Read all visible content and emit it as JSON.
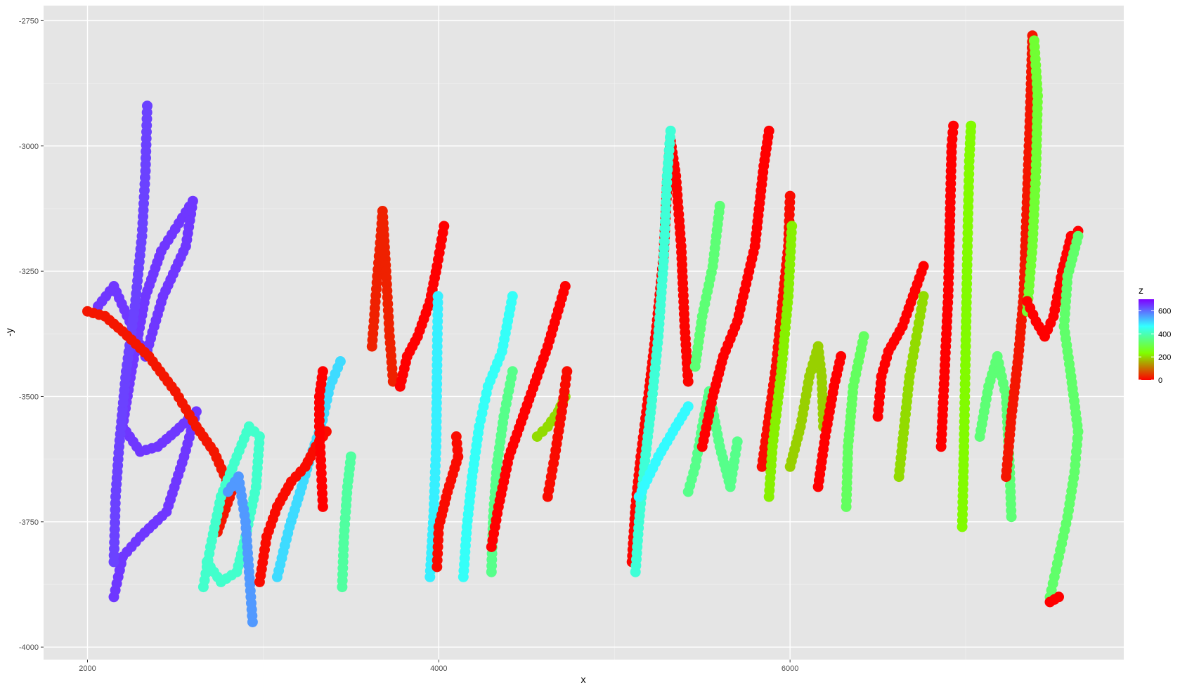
{
  "chart_data": {
    "type": "scatter",
    "title": "",
    "xlabel": "x",
    "ylabel": "-y",
    "xlim": [
      1750,
      7900
    ],
    "ylim": [
      -4025,
      -2720
    ],
    "x_ticks": [
      2000,
      4000,
      6000
    ],
    "x_tick_labels": [
      "2000",
      "4000",
      "6000"
    ],
    "y_ticks": [
      -4000,
      -3750,
      -3500,
      -3250,
      -3000,
      -2750
    ],
    "y_tick_labels": [
      "-4000",
      "-3750",
      "-3500",
      "-3250",
      "-3000",
      "-2750"
    ],
    "grid": true,
    "panel_background": "#e5e5e5",
    "grid_color": "#ffffff",
    "color_scale": {
      "name": "z",
      "min": 0,
      "max": 700,
      "breaks": [
        0,
        200,
        400,
        600
      ],
      "break_labels": [
        "0",
        "200",
        "400",
        "600"
      ],
      "stops": [
        "#ff0000",
        "#80ff00",
        "#33ffff",
        "#7f00ff"
      ]
    },
    "legend_position": "right",
    "tracks": [
      {
        "z": 650,
        "points": [
          [
            2150,
            -3900
          ],
          [
            2200,
            -3820
          ],
          [
            2300,
            -3780
          ],
          [
            2450,
            -3730
          ],
          [
            2550,
            -3620
          ],
          [
            2620,
            -3530
          ],
          [
            2500,
            -3570
          ],
          [
            2400,
            -3600
          ],
          [
            2300,
            -3610
          ],
          [
            2200,
            -3560
          ],
          [
            2250,
            -3450
          ],
          [
            2330,
            -3300
          ],
          [
            2420,
            -3210
          ],
          [
            2600,
            -3110
          ],
          [
            2560,
            -3200
          ],
          [
            2430,
            -3300
          ],
          [
            2330,
            -3420
          ],
          [
            2240,
            -3350
          ],
          [
            2150,
            -3280
          ],
          [
            2060,
            -3320
          ]
        ]
      },
      {
        "z": 640,
        "points": [
          [
            2150,
            -3830
          ],
          [
            2160,
            -3700
          ],
          [
            2180,
            -3600
          ],
          [
            2220,
            -3450
          ],
          [
            2270,
            -3320
          ],
          [
            2310,
            -3180
          ],
          [
            2330,
            -3050
          ],
          [
            2340,
            -2920
          ]
        ]
      },
      {
        "z": 20,
        "points": [
          [
            2000,
            -3330
          ],
          [
            2100,
            -3340
          ],
          [
            2200,
            -3370
          ],
          [
            2350,
            -3420
          ],
          [
            2500,
            -3490
          ],
          [
            2620,
            -3560
          ],
          [
            2720,
            -3610
          ],
          [
            2820,
            -3690
          ],
          [
            2740,
            -3770
          ]
        ]
      },
      {
        "z": 420,
        "points": [
          [
            2660,
            -3880
          ],
          [
            2700,
            -3800
          ],
          [
            2760,
            -3700
          ],
          [
            2850,
            -3620
          ],
          [
            2920,
            -3560
          ],
          [
            2980,
            -3580
          ],
          [
            2960,
            -3680
          ],
          [
            2900,
            -3780
          ],
          [
            2850,
            -3850
          ],
          [
            2760,
            -3870
          ],
          [
            2680,
            -3830
          ]
        ]
      },
      {
        "z": 560,
        "points": [
          [
            2940,
            -3950
          ],
          [
            2920,
            -3850
          ],
          [
            2900,
            -3750
          ],
          [
            2860,
            -3660
          ],
          [
            2800,
            -3690
          ]
        ]
      },
      {
        "z": 500,
        "points": [
          [
            3080,
            -3860
          ],
          [
            3150,
            -3760
          ],
          [
            3220,
            -3680
          ],
          [
            3270,
            -3620
          ],
          [
            3330,
            -3560
          ],
          [
            3380,
            -3480
          ],
          [
            3440,
            -3430
          ]
        ]
      },
      {
        "z": 10,
        "points": [
          [
            2980,
            -3870
          ],
          [
            3020,
            -3780
          ],
          [
            3080,
            -3720
          ],
          [
            3160,
            -3670
          ],
          [
            3240,
            -3640
          ],
          [
            3300,
            -3600
          ],
          [
            3360,
            -3570
          ]
        ]
      },
      {
        "z": 0,
        "points": [
          [
            3340,
            -3720
          ],
          [
            3330,
            -3640
          ],
          [
            3320,
            -3560
          ],
          [
            3320,
            -3500
          ],
          [
            3340,
            -3450
          ]
        ]
      },
      {
        "z": 380,
        "points": [
          [
            3450,
            -3880
          ],
          [
            3460,
            -3780
          ],
          [
            3480,
            -3680
          ],
          [
            3500,
            -3620
          ]
        ]
      },
      {
        "z": 30,
        "points": [
          [
            3620,
            -3400
          ],
          [
            3650,
            -3260
          ],
          [
            3670,
            -3180
          ],
          [
            3680,
            -3130
          ],
          [
            3700,
            -3250
          ],
          [
            3720,
            -3380
          ],
          [
            3740,
            -3470
          ]
        ]
      },
      {
        "z": 0,
        "points": [
          [
            3780,
            -3480
          ],
          [
            3820,
            -3420
          ],
          [
            3880,
            -3380
          ],
          [
            3950,
            -3310
          ],
          [
            3990,
            -3240
          ],
          [
            4030,
            -3160
          ]
        ]
      },
      {
        "z": 480,
        "points": [
          [
            3950,
            -3860
          ],
          [
            3970,
            -3740
          ],
          [
            3985,
            -3600
          ],
          [
            3990,
            -3450
          ],
          [
            3995,
            -3300
          ]
        ]
      },
      {
        "z": 10,
        "points": [
          [
            3990,
            -3840
          ],
          [
            4000,
            -3760
          ],
          [
            4050,
            -3690
          ],
          [
            4110,
            -3620
          ],
          [
            4100,
            -3580
          ]
        ]
      },
      {
        "z": 460,
        "points": [
          [
            4140,
            -3860
          ],
          [
            4160,
            -3760
          ],
          [
            4190,
            -3660
          ],
          [
            4230,
            -3560
          ],
          [
            4280,
            -3480
          ],
          [
            4360,
            -3410
          ],
          [
            4420,
            -3300
          ]
        ]
      },
      {
        "z": 360,
        "points": [
          [
            4300,
            -3850
          ],
          [
            4310,
            -3740
          ],
          [
            4330,
            -3640
          ],
          [
            4370,
            -3540
          ],
          [
            4420,
            -3450
          ]
        ]
      },
      {
        "z": 0,
        "points": [
          [
            4300,
            -3800
          ],
          [
            4340,
            -3720
          ],
          [
            4400,
            -3620
          ],
          [
            4480,
            -3540
          ],
          [
            4560,
            -3460
          ],
          [
            4620,
            -3400
          ],
          [
            4670,
            -3340
          ],
          [
            4720,
            -3280
          ]
        ]
      },
      {
        "z": 200,
        "points": [
          [
            4560,
            -3580
          ],
          [
            4620,
            -3560
          ],
          [
            4680,
            -3530
          ],
          [
            4720,
            -3500
          ]
        ]
      },
      {
        "z": 10,
        "points": [
          [
            4620,
            -3700
          ],
          [
            4660,
            -3620
          ],
          [
            4700,
            -3530
          ],
          [
            4730,
            -3450
          ]
        ]
      },
      {
        "z": 5,
        "points": [
          [
            5100,
            -3830
          ],
          [
            5120,
            -3720
          ],
          [
            5150,
            -3620
          ],
          [
            5200,
            -3480
          ],
          [
            5240,
            -3360
          ],
          [
            5280,
            -3220
          ],
          [
            5300,
            -3080
          ],
          [
            5320,
            -2990
          ],
          [
            5350,
            -3060
          ],
          [
            5380,
            -3200
          ],
          [
            5400,
            -3360
          ],
          [
            5420,
            -3470
          ]
        ]
      },
      {
        "z": 430,
        "points": [
          [
            5120,
            -3850
          ],
          [
            5140,
            -3750
          ],
          [
            5170,
            -3640
          ],
          [
            5210,
            -3520
          ],
          [
            5250,
            -3380
          ],
          [
            5280,
            -3230
          ],
          [
            5300,
            -3060
          ],
          [
            5320,
            -2970
          ]
        ]
      },
      {
        "z": 470,
        "points": [
          [
            5140,
            -3700
          ],
          [
            5250,
            -3620
          ],
          [
            5350,
            -3560
          ],
          [
            5420,
            -3520
          ]
        ]
      },
      {
        "z": 360,
        "points": [
          [
            5420,
            -3690
          ],
          [
            5460,
            -3640
          ],
          [
            5500,
            -3560
          ],
          [
            5540,
            -3490
          ],
          [
            5600,
            -3600
          ],
          [
            5660,
            -3680
          ],
          [
            5700,
            -3590
          ]
        ]
      },
      {
        "z": 0,
        "points": [
          [
            5500,
            -3600
          ],
          [
            5560,
            -3500
          ],
          [
            5620,
            -3420
          ],
          [
            5700,
            -3350
          ],
          [
            5800,
            -3200
          ],
          [
            5850,
            -3040
          ],
          [
            5880,
            -2970
          ]
        ]
      },
      {
        "z": 340,
        "points": [
          [
            5460,
            -3440
          ],
          [
            5500,
            -3340
          ],
          [
            5560,
            -3240
          ],
          [
            5600,
            -3120
          ]
        ]
      },
      {
        "z": 10,
        "points": [
          [
            5840,
            -3640
          ],
          [
            5880,
            -3540
          ],
          [
            5920,
            -3440
          ],
          [
            5960,
            -3300
          ],
          [
            5990,
            -3200
          ],
          [
            6000,
            -3100
          ]
        ]
      },
      {
        "z": 220,
        "points": [
          [
            5880,
            -3700
          ],
          [
            5900,
            -3600
          ],
          [
            5950,
            -3450
          ],
          [
            5990,
            -3300
          ],
          [
            6010,
            -3160
          ]
        ]
      },
      {
        "z": 190,
        "points": [
          [
            6000,
            -3640
          ],
          [
            6060,
            -3560
          ],
          [
            6110,
            -3460
          ],
          [
            6160,
            -3400
          ],
          [
            6180,
            -3460
          ],
          [
            6190,
            -3560
          ]
        ]
      },
      {
        "z": 0,
        "points": [
          [
            6160,
            -3680
          ],
          [
            6200,
            -3580
          ],
          [
            6250,
            -3480
          ],
          [
            6290,
            -3420
          ]
        ]
      },
      {
        "z": 320,
        "points": [
          [
            6320,
            -3720
          ],
          [
            6330,
            -3600
          ],
          [
            6360,
            -3480
          ],
          [
            6420,
            -3380
          ]
        ]
      },
      {
        "z": 0,
        "points": [
          [
            6500,
            -3540
          ],
          [
            6520,
            -3460
          ],
          [
            6560,
            -3410
          ],
          [
            6640,
            -3360
          ],
          [
            6700,
            -3300
          ],
          [
            6760,
            -3240
          ]
        ]
      },
      {
        "z": 200,
        "points": [
          [
            6620,
            -3660
          ],
          [
            6650,
            -3560
          ],
          [
            6680,
            -3460
          ],
          [
            6720,
            -3380
          ],
          [
            6760,
            -3300
          ]
        ]
      },
      {
        "z": 0,
        "points": [
          [
            6860,
            -3600
          ],
          [
            6880,
            -3450
          ],
          [
            6900,
            -3300
          ],
          [
            6910,
            -3150
          ],
          [
            6920,
            -3000
          ],
          [
            6930,
            -2960
          ]
        ]
      },
      {
        "z": 230,
        "points": [
          [
            6980,
            -3760
          ],
          [
            6990,
            -3600
          ],
          [
            7000,
            -3400
          ],
          [
            7010,
            -3200
          ],
          [
            7020,
            -3030
          ],
          [
            7030,
            -2960
          ]
        ]
      },
      {
        "z": 340,
        "points": [
          [
            7080,
            -3580
          ],
          [
            7130,
            -3480
          ],
          [
            7180,
            -3420
          ],
          [
            7230,
            -3500
          ],
          [
            7250,
            -3640
          ],
          [
            7260,
            -3740
          ]
        ]
      },
      {
        "z": 20,
        "points": [
          [
            7230,
            -3660
          ],
          [
            7260,
            -3540
          ],
          [
            7300,
            -3420
          ],
          [
            7330,
            -3300
          ],
          [
            7350,
            -3100
          ],
          [
            7370,
            -2900
          ],
          [
            7380,
            -2780
          ]
        ]
      },
      {
        "z": 280,
        "points": [
          [
            7390,
            -2790
          ],
          [
            7410,
            -2900
          ],
          [
            7400,
            -3050
          ],
          [
            7380,
            -3200
          ],
          [
            7350,
            -3330
          ]
        ]
      },
      {
        "z": 0,
        "points": [
          [
            7350,
            -3310
          ],
          [
            7400,
            -3350
          ],
          [
            7450,
            -3380
          ],
          [
            7500,
            -3340
          ],
          [
            7550,
            -3250
          ],
          [
            7600,
            -3180
          ],
          [
            7640,
            -3170
          ]
        ]
      },
      {
        "z": 330,
        "points": [
          [
            7480,
            -3900
          ],
          [
            7530,
            -3820
          ],
          [
            7580,
            -3740
          ],
          [
            7620,
            -3650
          ],
          [
            7640,
            -3570
          ],
          [
            7600,
            -3460
          ],
          [
            7560,
            -3360
          ],
          [
            7580,
            -3260
          ],
          [
            7640,
            -3180
          ]
        ]
      },
      {
        "z": 0,
        "points": [
          [
            7480,
            -3910
          ],
          [
            7530,
            -3900
          ]
        ]
      }
    ]
  }
}
